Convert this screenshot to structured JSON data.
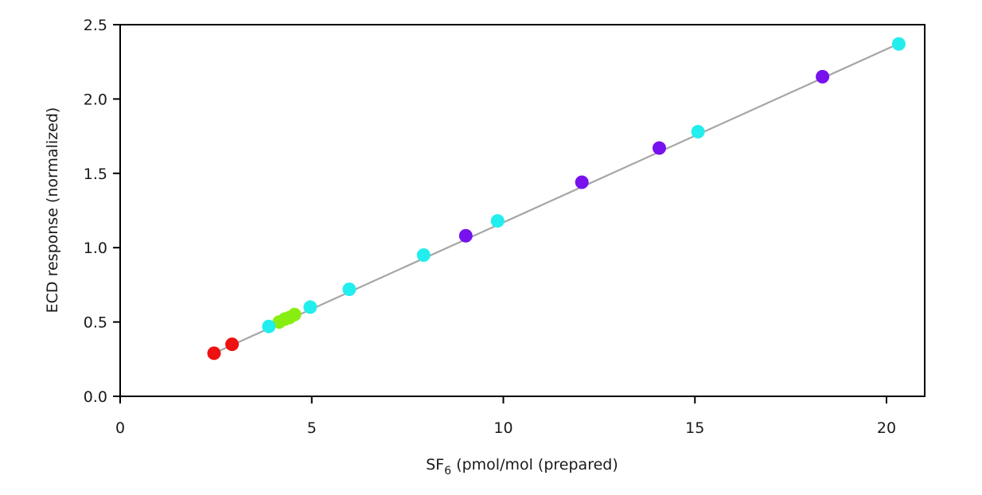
{
  "chart_data": {
    "type": "scatter",
    "title": "",
    "xlabel": {
      "main": "SF",
      "subscript": "6",
      "rest": " (pmol/mol (prepared)"
    },
    "ylabel": "ECD response (normalized)",
    "xlim": [
      0,
      21
    ],
    "ylim": [
      0,
      2.5
    ],
    "x_ticks": [
      0,
      5,
      10,
      15,
      20
    ],
    "x_tick_labels": [
      "0",
      "5",
      "10",
      "15",
      "20"
    ],
    "y_ticks": [
      0,
      0.5,
      1.0,
      1.5,
      2.0,
      2.5
    ],
    "y_tick_labels": [
      "0.0",
      "0.5",
      "1.0",
      "1.5",
      "2.0",
      "2.5"
    ],
    "grid": false,
    "fit_line": {
      "color": "#a6a6a6",
      "x": [
        2.45,
        20.3
      ],
      "y": [
        0.29,
        2.37
      ]
    },
    "series": [
      {
        "color": "#ee1111",
        "x": [
          2.45,
          2.92
        ],
        "y": [
          0.29,
          0.35
        ]
      },
      {
        "color": "#88ee11",
        "x": [
          4.15,
          4.3,
          4.42,
          4.55
        ],
        "y": [
          0.5,
          0.52,
          0.53,
          0.55
        ]
      },
      {
        "color": "#22eeee",
        "x": [
          3.88,
          4.96,
          5.98,
          7.92,
          9.85,
          15.08,
          20.32
        ],
        "y": [
          0.47,
          0.6,
          0.72,
          0.95,
          1.18,
          1.78,
          2.37
        ]
      },
      {
        "color": "#7711ee",
        "x": [
          9.02,
          12.05,
          14.07,
          18.33
        ],
        "y": [
          1.08,
          1.44,
          1.67,
          2.15
        ]
      }
    ]
  }
}
